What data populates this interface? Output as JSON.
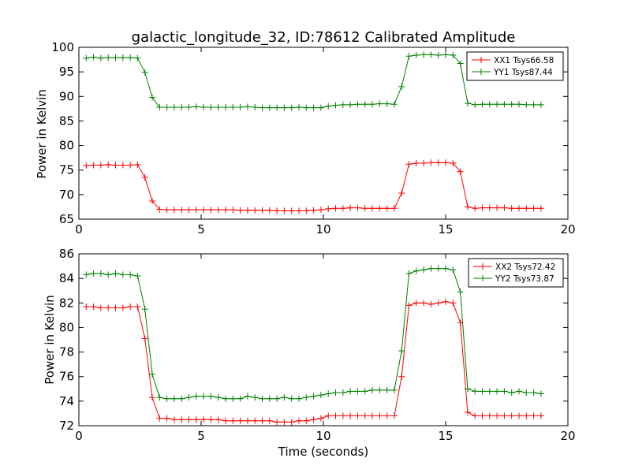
{
  "chart_data": [
    {
      "type": "line",
      "title": "galactic_longitude_32, ID:78612 Calibrated Amplitude",
      "xlabel": "",
      "ylabel": "Power in Kelvin",
      "xlim": [
        0,
        20
      ],
      "ylim": [
        65,
        100
      ],
      "xticks": [
        "0",
        "5",
        "10",
        "15",
        "20"
      ],
      "yticks": [
        "65",
        "70",
        "75",
        "80",
        "85",
        "90",
        "95",
        "100"
      ],
      "grid": false,
      "legend": "top-right",
      "x": [
        0.3,
        0.6,
        0.9,
        1.2,
        1.5,
        1.8,
        2.1,
        2.4,
        2.7,
        3.0,
        3.3,
        3.6,
        3.9,
        4.2,
        4.5,
        4.8,
        5.1,
        5.4,
        5.7,
        6.0,
        6.3,
        6.6,
        6.9,
        7.2,
        7.5,
        7.8,
        8.1,
        8.4,
        8.7,
        9.0,
        9.3,
        9.6,
        9.9,
        10.2,
        10.5,
        10.8,
        11.1,
        11.4,
        11.7,
        12.0,
        12.3,
        12.6,
        12.9,
        13.2,
        13.5,
        13.8,
        14.1,
        14.4,
        14.7,
        15.0,
        15.3,
        15.6,
        15.9,
        16.2,
        16.5,
        16.8,
        17.1,
        17.4,
        17.7,
        18.0,
        18.3,
        18.6,
        18.9
      ],
      "series": [
        {
          "name": "XX1 Tsys66.58",
          "color": "#ff0000",
          "values": [
            75.9,
            76.0,
            76.0,
            76.1,
            76.0,
            76.0,
            76.0,
            76.1,
            73.5,
            68.7,
            67.0,
            66.9,
            66.9,
            66.9,
            66.9,
            66.9,
            66.9,
            66.9,
            66.9,
            66.9,
            66.9,
            66.8,
            66.8,
            66.8,
            66.8,
            66.8,
            66.7,
            66.7,
            66.7,
            66.7,
            66.7,
            66.8,
            66.9,
            67.1,
            67.2,
            67.2,
            67.3,
            67.3,
            67.2,
            67.2,
            67.2,
            67.2,
            67.2,
            70.3,
            76.2,
            76.4,
            76.4,
            76.5,
            76.5,
            76.5,
            76.4,
            74.7,
            67.5,
            67.2,
            67.3,
            67.3,
            67.3,
            67.3,
            67.2,
            67.2,
            67.2,
            67.2,
            67.2
          ]
        },
        {
          "name": "YY1 Tsys87.44",
          "color": "#008000",
          "values": [
            97.8,
            98.0,
            97.8,
            97.9,
            97.9,
            97.9,
            97.9,
            97.8,
            94.9,
            89.8,
            87.8,
            87.8,
            87.8,
            87.8,
            87.8,
            87.9,
            87.8,
            87.8,
            87.8,
            87.8,
            87.8,
            87.8,
            87.9,
            87.8,
            87.7,
            87.7,
            87.7,
            87.7,
            87.7,
            87.8,
            87.7,
            87.7,
            87.7,
            88.0,
            88.2,
            88.3,
            88.3,
            88.4,
            88.4,
            88.4,
            88.5,
            88.5,
            88.4,
            92.0,
            98.2,
            98.4,
            98.5,
            98.5,
            98.4,
            98.5,
            98.4,
            96.7,
            88.6,
            88.3,
            88.4,
            88.4,
            88.4,
            88.4,
            88.4,
            88.4,
            88.3,
            88.3,
            88.3
          ]
        }
      ]
    },
    {
      "type": "line",
      "title": "",
      "xlabel": "Time (seconds)",
      "ylabel": "Power in Kelvin",
      "xlim": [
        0,
        20
      ],
      "ylim": [
        72,
        86
      ],
      "xticks": [
        "0",
        "5",
        "10",
        "15",
        "20"
      ],
      "yticks": [
        "72",
        "74",
        "76",
        "78",
        "80",
        "82",
        "84",
        "86"
      ],
      "grid": false,
      "legend": "top-right",
      "x": [
        0.3,
        0.6,
        0.9,
        1.2,
        1.5,
        1.8,
        2.1,
        2.4,
        2.7,
        3.0,
        3.3,
        3.6,
        3.9,
        4.2,
        4.5,
        4.8,
        5.1,
        5.4,
        5.7,
        6.0,
        6.3,
        6.6,
        6.9,
        7.2,
        7.5,
        7.8,
        8.1,
        8.4,
        8.7,
        9.0,
        9.3,
        9.6,
        9.9,
        10.2,
        10.5,
        10.8,
        11.1,
        11.4,
        11.7,
        12.0,
        12.3,
        12.6,
        12.9,
        13.2,
        13.5,
        13.8,
        14.1,
        14.4,
        14.7,
        15.0,
        15.3,
        15.6,
        15.9,
        16.2,
        16.5,
        16.8,
        17.1,
        17.4,
        17.7,
        18.0,
        18.3,
        18.6,
        18.9
      ],
      "series": [
        {
          "name": "XX2 Tsys72.42",
          "color": "#ff0000",
          "values": [
            81.7,
            81.7,
            81.6,
            81.6,
            81.6,
            81.6,
            81.7,
            81.7,
            79.1,
            74.3,
            72.6,
            72.6,
            72.5,
            72.5,
            72.5,
            72.5,
            72.5,
            72.5,
            72.5,
            72.4,
            72.4,
            72.4,
            72.4,
            72.4,
            72.4,
            72.4,
            72.3,
            72.3,
            72.3,
            72.4,
            72.4,
            72.5,
            72.6,
            72.8,
            72.8,
            72.8,
            72.8,
            72.8,
            72.8,
            72.8,
            72.8,
            72.8,
            72.8,
            76.0,
            81.8,
            82.0,
            82.0,
            81.9,
            82.0,
            82.1,
            82.0,
            80.4,
            73.1,
            72.8,
            72.8,
            72.8,
            72.8,
            72.8,
            72.8,
            72.8,
            72.8,
            72.8,
            72.8
          ]
        },
        {
          "name": "YY2 Tsys73.87",
          "color": "#008000",
          "values": [
            84.3,
            84.4,
            84.4,
            84.3,
            84.4,
            84.3,
            84.3,
            84.2,
            81.5,
            76.2,
            74.3,
            74.2,
            74.2,
            74.2,
            74.3,
            74.4,
            74.4,
            74.4,
            74.3,
            74.2,
            74.2,
            74.2,
            74.4,
            74.3,
            74.2,
            74.2,
            74.2,
            74.3,
            74.2,
            74.2,
            74.3,
            74.4,
            74.5,
            74.6,
            74.7,
            74.7,
            74.8,
            74.8,
            74.8,
            74.9,
            74.9,
            74.9,
            74.9,
            78.1,
            84.4,
            84.6,
            84.7,
            84.8,
            84.8,
            84.8,
            84.7,
            82.9,
            75.0,
            74.8,
            74.8,
            74.8,
            74.8,
            74.8,
            74.7,
            74.8,
            74.7,
            74.7,
            74.6
          ]
        }
      ]
    }
  ]
}
